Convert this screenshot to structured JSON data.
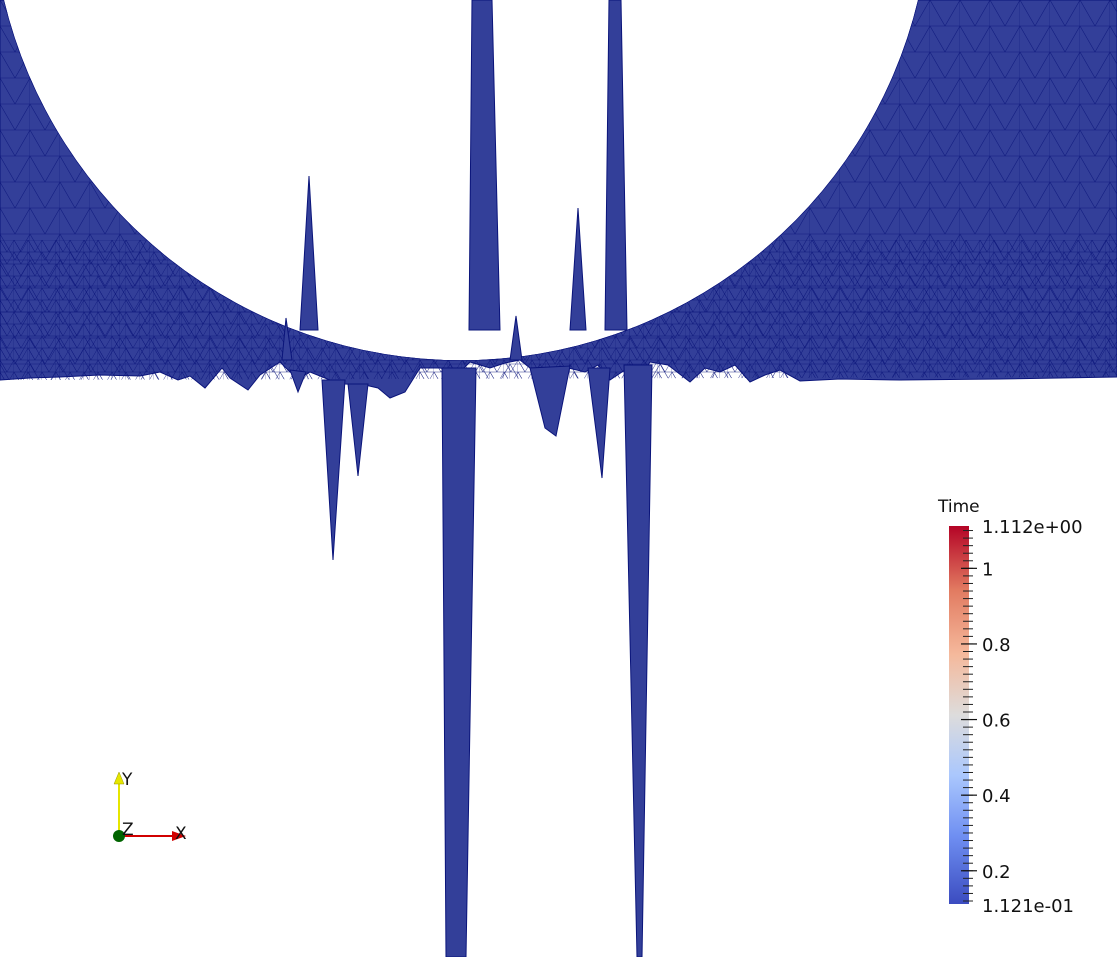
{
  "scalar_bar": {
    "title": "Time",
    "max_label": "1.112e+00",
    "min_label": "1.121e-01",
    "range": [
      0.1121,
      1.112
    ],
    "ticks": [
      {
        "value": 1.0,
        "label": "1"
      },
      {
        "value": 0.8,
        "label": "0.8"
      },
      {
        "value": 0.6,
        "label": "0.6"
      },
      {
        "value": 0.4,
        "label": "0.4"
      },
      {
        "value": 0.2,
        "label": "0.2"
      }
    ],
    "colormap": [
      "#3b4cc0",
      "#7396f5",
      "#b0cbfc",
      "#dddcdc",
      "#f6b69a",
      "#e57a5f",
      "#b40426"
    ]
  },
  "axes": {
    "x_label": "X",
    "y_label": "Y",
    "z_label": "Z",
    "x_color": "#d10000",
    "y_color": "#e6e600",
    "z_color": "#006400"
  },
  "mesh": {
    "fill_color": "#333f99",
    "edge_color": "#0a147a"
  }
}
